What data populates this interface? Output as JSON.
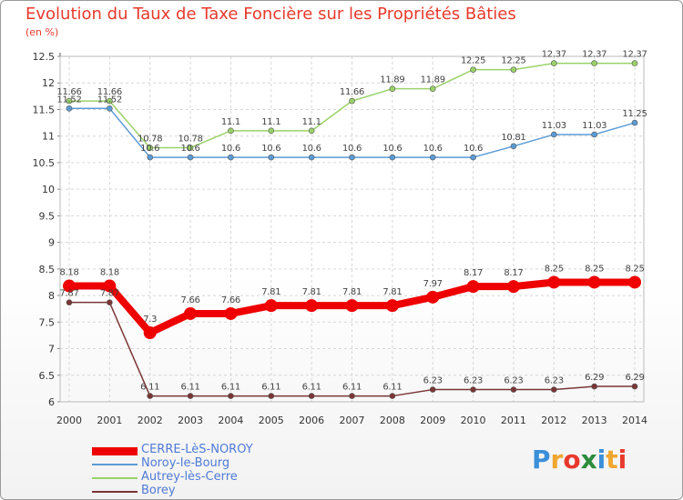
{
  "title": "Evolution du Taux de Taxe Foncière sur les Propriétés Bâties",
  "subtitle": "(en %)",
  "brand": {
    "text": "Proxiti",
    "letters": [
      {
        "ch": "P",
        "color": "#3b8fd9"
      },
      {
        "ch": "r",
        "color": "#f0a630"
      },
      {
        "ch": "o",
        "color": "#e8392c"
      },
      {
        "ch": "x",
        "color": "#2c8c3c"
      },
      {
        "ch": "i",
        "color": "#3b8fd9"
      },
      {
        "ch": "t",
        "color": "#f0a630"
      },
      {
        "ch": "i",
        "color": "#e8392c"
      }
    ]
  },
  "chart_data": {
    "type": "line",
    "title": "Evolution du Taux de Taxe Foncière sur les Propriétés Bâties",
    "ylabel": "(en %)",
    "xlabel": "",
    "x": [
      "2000",
      "2001",
      "2002",
      "2003",
      "2004",
      "2005",
      "2006",
      "2007",
      "2008",
      "2009",
      "2010",
      "2011",
      "2012",
      "2013",
      "2014"
    ],
    "ylim": [
      6,
      12.5
    ],
    "yticks": [
      "6",
      "6.5",
      "7",
      "7.5",
      "8",
      "8.5",
      "9",
      "9.5",
      "10",
      "10.5",
      "11",
      "11.5",
      "12",
      "12.5"
    ],
    "grid": true,
    "legend_position": "bottom-left",
    "series": [
      {
        "name": "CERRE-LèS-NOROY",
        "color": "#ee0000",
        "width": 8,
        "values": [
          8.18,
          8.18,
          7.3,
          7.66,
          7.66,
          7.81,
          7.81,
          7.81,
          7.81,
          7.97,
          8.17,
          8.17,
          8.25,
          8.25,
          8.25
        ],
        "labels": [
          "8.18",
          "8.18",
          "7.3",
          "7.66",
          "7.66",
          "7.81",
          "7.81",
          "7.81",
          "7.81",
          "7.97",
          "8.17",
          "8.17",
          "8.25",
          "8.25",
          "8.25"
        ]
      },
      {
        "name": "Noroy-le-Bourg",
        "color": "#5b9bd5",
        "width": 1.5,
        "values": [
          11.52,
          11.52,
          10.6,
          10.6,
          10.6,
          10.6,
          10.6,
          10.6,
          10.6,
          10.6,
          10.6,
          10.81,
          11.03,
          11.03,
          11.25
        ],
        "labels": [
          "11.52",
          "11.52",
          "10.6",
          "10.6",
          "10.6",
          "10.6",
          "10.6",
          "10.6",
          "10.6",
          "10.6",
          "10.6",
          "10.81",
          "11.03",
          "11.03",
          "11.25"
        ]
      },
      {
        "name": "Autrey-lès-Cerre",
        "color": "#9ad26a",
        "width": 1.5,
        "values": [
          11.66,
          11.66,
          10.78,
          10.78,
          11.1,
          11.1,
          11.1,
          11.66,
          11.89,
          11.89,
          12.25,
          12.25,
          12.37,
          12.37,
          12.37
        ],
        "labels": [
          "11.66",
          "11.66",
          "10.78",
          "10.78",
          "11.1",
          "11.1",
          "11.1",
          "11.66",
          "11.89",
          "11.89",
          "12.25",
          "12.25",
          "12.37",
          "12.37",
          "12.37"
        ]
      },
      {
        "name": "Borey",
        "color": "#7a3535",
        "width": 1.5,
        "values": [
          7.87,
          7.87,
          6.11,
          6.11,
          6.11,
          6.11,
          6.11,
          6.11,
          6.11,
          6.23,
          6.23,
          6.23,
          6.23,
          6.29,
          6.29
        ],
        "labels": [
          "7.87",
          "7.87",
          "6.11",
          "6.11",
          "6.11",
          "6.11",
          "6.11",
          "6.11",
          "6.11",
          "6.23",
          "6.23",
          "6.23",
          "6.23",
          "6.29",
          "6.29"
        ]
      }
    ]
  }
}
